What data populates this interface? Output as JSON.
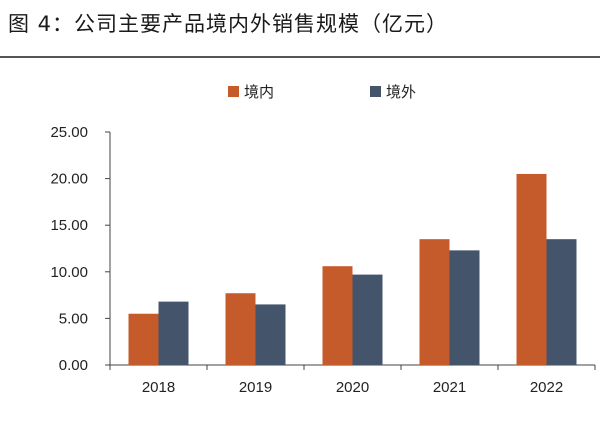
{
  "figure_title": "图 4：公司主要产品境内外销售规模（亿元）",
  "chart_data": {
    "type": "bar",
    "title": "图 4：公司主要产品境内外销售规模（亿元）",
    "categories": [
      "2018",
      "2019",
      "2020",
      "2021",
      "2022"
    ],
    "series": [
      {
        "name": "境内",
        "color": "#C55A2B",
        "values": [
          5.5,
          7.7,
          10.6,
          13.5,
          20.5
        ]
      },
      {
        "name": "境外",
        "color": "#44546A",
        "values": [
          6.8,
          6.5,
          9.7,
          12.3,
          13.5
        ]
      }
    ],
    "y_ticks": [
      "0.00",
      "5.00",
      "10.00",
      "15.00",
      "20.00",
      "25.00"
    ],
    "ylim": [
      0,
      25
    ],
    "xlabel": "",
    "ylabel": "",
    "legend_position": "top-center",
    "grid": false
  }
}
